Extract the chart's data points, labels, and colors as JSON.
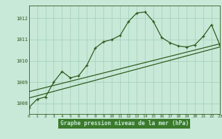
{
  "main_line": [
    [
      0,
      1007.8
    ],
    [
      1,
      1008.2
    ],
    [
      2,
      1008.3
    ],
    [
      3,
      1009.0
    ],
    [
      4,
      1009.5
    ],
    [
      5,
      1009.2
    ],
    [
      6,
      1009.3
    ],
    [
      7,
      1009.8
    ],
    [
      8,
      1010.6
    ],
    [
      9,
      1010.9
    ],
    [
      10,
      1011.0
    ],
    [
      11,
      1011.2
    ],
    [
      12,
      1011.85
    ],
    [
      13,
      1012.25
    ],
    [
      14,
      1012.3
    ],
    [
      15,
      1011.85
    ],
    [
      16,
      1011.1
    ],
    [
      17,
      1010.85
    ],
    [
      18,
      1010.7
    ],
    [
      19,
      1010.65
    ],
    [
      20,
      1010.75
    ],
    [
      21,
      1011.15
    ],
    [
      22,
      1011.7
    ],
    [
      23,
      1010.75
    ]
  ],
  "trend_line1": [
    [
      0,
      1008.25
    ],
    [
      23,
      1010.65
    ]
  ],
  "trend_line2": [
    [
      0,
      1008.55
    ],
    [
      23,
      1010.8
    ]
  ],
  "x_ticks": [
    0,
    1,
    2,
    3,
    4,
    5,
    6,
    7,
    8,
    9,
    10,
    11,
    12,
    13,
    14,
    15,
    16,
    17,
    18,
    19,
    20,
    21,
    22,
    23
  ],
  "y_ticks": [
    1008,
    1009,
    1010,
    1011,
    1012
  ],
  "ylim": [
    1007.5,
    1012.6
  ],
  "xlim": [
    0,
    23
  ],
  "xlabel": "Graphe pression niveau de la mer (hPa)",
  "line_color": "#2d5a1b",
  "bg_color": "#c8e8d8",
  "grid_color": "#9ecfb8",
  "label_bg": "#3a7a2a",
  "label_fg": "#c8e8d8"
}
